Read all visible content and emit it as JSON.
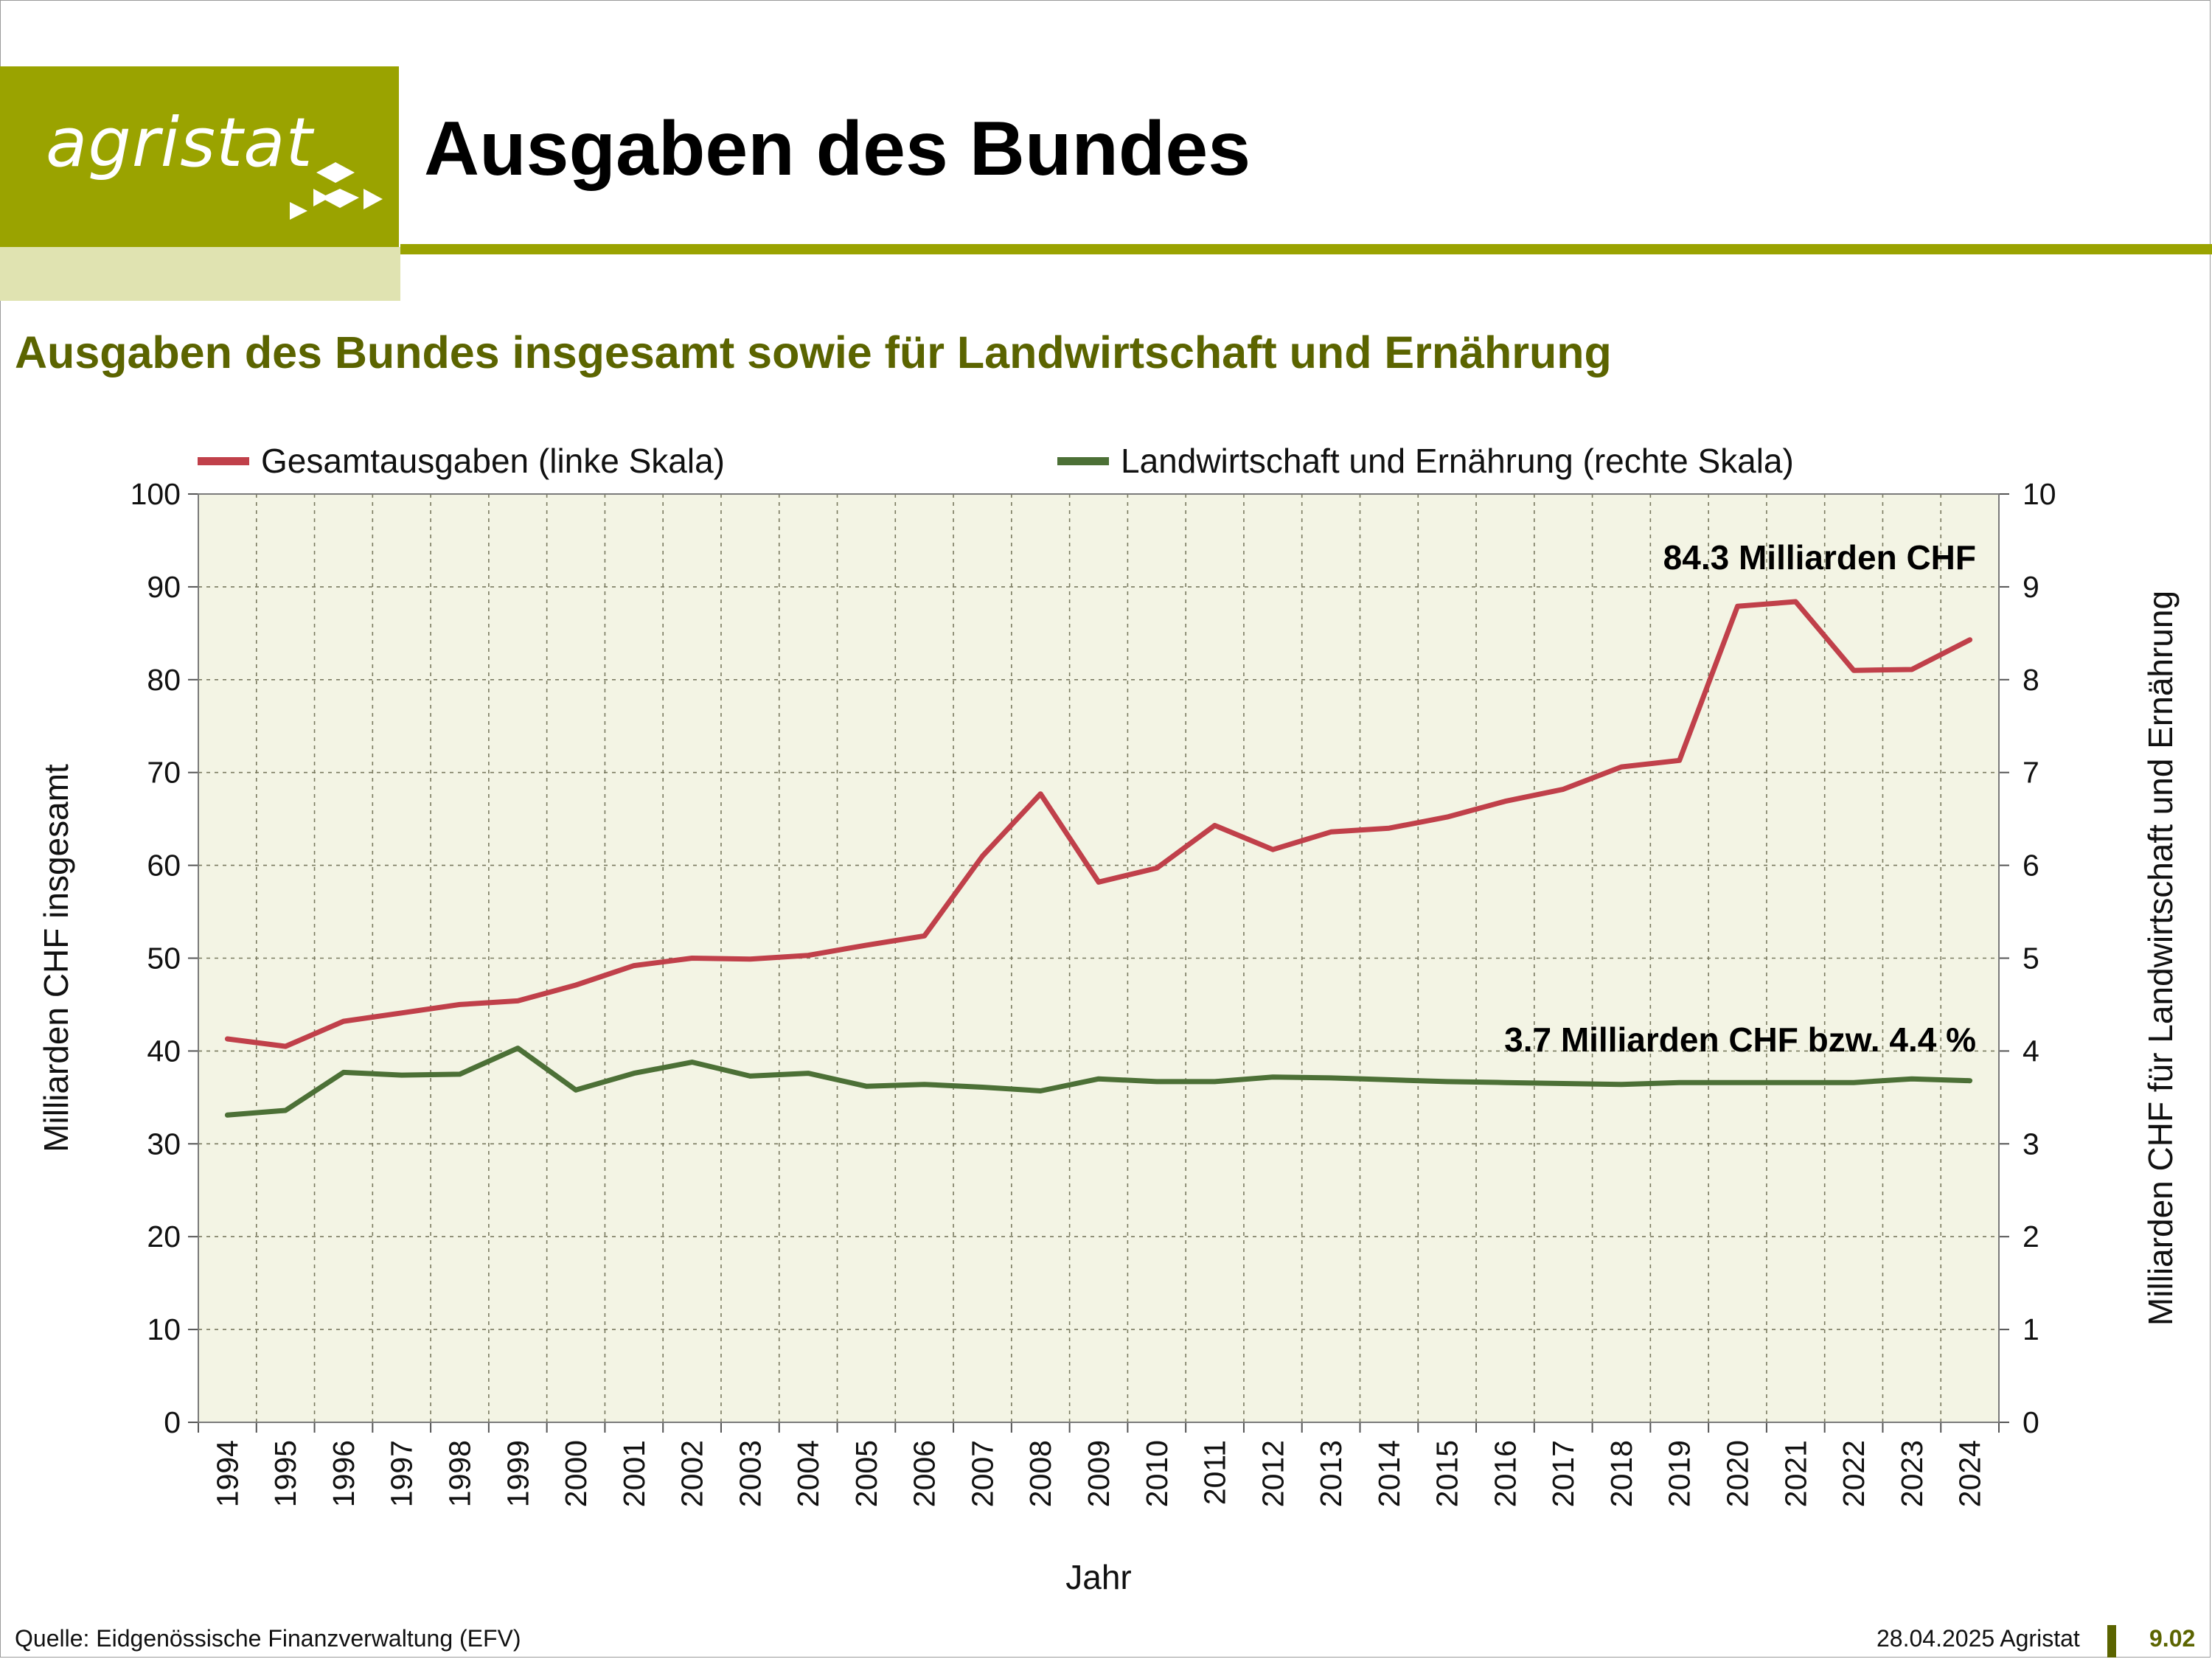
{
  "header": {
    "logo_text": "agristat",
    "title": "Ausgaben des Bundes",
    "colors": {
      "brand": "#9aa300",
      "brand_light": "#e0e3b1",
      "subtitle": "#5b6400"
    }
  },
  "subtitle": "Ausgaben des Bundes insgesamt sowie für Landwirtschaft und Ernährung",
  "legend": {
    "items": [
      {
        "label": "Gesamtausgaben (linke Skala)",
        "color": "#c0404a"
      },
      {
        "label": "Landwirtschaft und Ernährung (rechte Skala)",
        "color": "#4c7036"
      }
    ]
  },
  "chart_data": {
    "type": "line",
    "title": "",
    "xlabel": "Jahr",
    "ylabel": "Milliarden CHF insgesamt",
    "ylabel_right": "Milliarden CHF für Landwirtschaft und Ernährung",
    "x": [
      "1994",
      "1995",
      "1996",
      "1997",
      "1998",
      "1999",
      "2000",
      "2001",
      "2002",
      "2003",
      "2004",
      "2005",
      "2006",
      "2007",
      "2008",
      "2009",
      "2010",
      "2011",
      "2012",
      "2013",
      "2014",
      "2015",
      "2016",
      "2017",
      "2018",
      "2019",
      "2020",
      "2021",
      "2022",
      "2023",
      "2024"
    ],
    "ylim": [
      0,
      100
    ],
    "ylim_right": [
      0,
      10
    ],
    "yticks": [
      0,
      10,
      20,
      30,
      40,
      50,
      60,
      70,
      80,
      90,
      100
    ],
    "yticks_right": [
      0,
      1,
      2,
      3,
      4,
      5,
      6,
      7,
      8,
      9,
      10
    ],
    "grid": true,
    "plot_background": "#f3f4e4",
    "series": [
      {
        "name": "Gesamtausgaben (linke Skala)",
        "axis": "left",
        "color": "#c0404a",
        "values": [
          41.3,
          40.5,
          43.2,
          44.1,
          45.0,
          45.4,
          47.1,
          49.2,
          50.0,
          49.9,
          50.3,
          51.4,
          52.4,
          61.0,
          67.7,
          58.2,
          59.7,
          64.3,
          61.7,
          63.6,
          64.0,
          65.2,
          66.9,
          68.2,
          70.6,
          71.3,
          87.9,
          88.4,
          81.0,
          81.1,
          84.3
        ]
      },
      {
        "name": "Landwirtschaft und Ernährung (rechte Skala)",
        "axis": "right",
        "color": "#4c7036",
        "values": [
          3.31,
          3.36,
          3.77,
          3.74,
          3.75,
          4.03,
          3.58,
          3.76,
          3.88,
          3.73,
          3.76,
          3.62,
          3.64,
          3.61,
          3.57,
          3.7,
          3.67,
          3.67,
          3.72,
          3.71,
          3.69,
          3.67,
          3.66,
          3.65,
          3.64,
          3.66,
          3.66,
          3.66,
          3.66,
          3.7,
          3.68
        ]
      }
    ],
    "annotations": [
      {
        "text": "84.3 Milliarden CHF",
        "x": "2024",
        "y": 84.3,
        "axis": "left"
      },
      {
        "text": "3.7 Milliarden CHF bzw. 4.4 %",
        "x": "2024",
        "y": 3.68,
        "axis": "right"
      }
    ]
  },
  "footer": {
    "source": "Quelle: Eidgenössische Finanzverwaltung (EFV)",
    "date_org": "28.04.2025 Agristat",
    "page": "9.02"
  }
}
